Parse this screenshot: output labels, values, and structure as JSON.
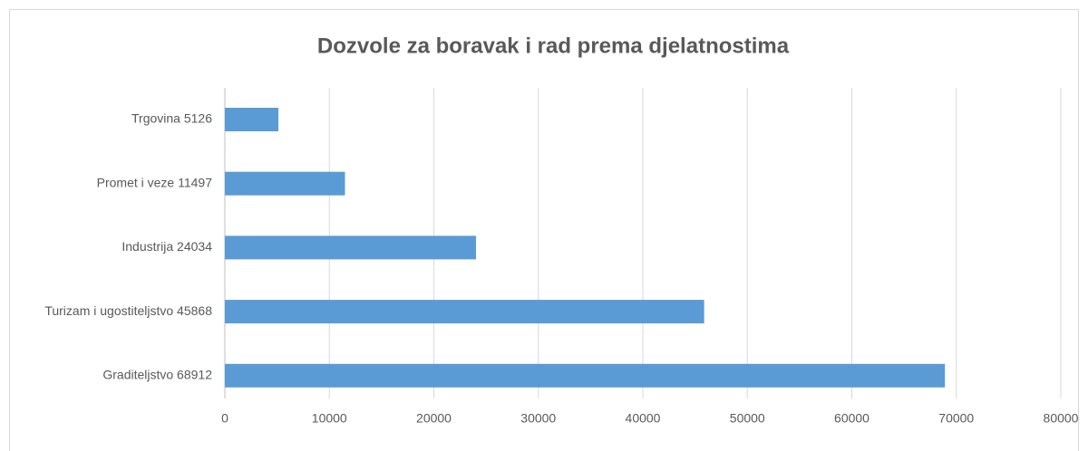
{
  "chart_data": {
    "type": "bar",
    "orientation": "horizontal",
    "title": "Dozvole za boravak i rad prema djelatnostima",
    "categories": [
      "Trgovina 5126",
      "Promet i veze 11497",
      "Industrija 24034",
      "Turizam i ugostiteljstvo 45868",
      "Graditeljstvo 68912"
    ],
    "values": [
      5126,
      11497,
      24034,
      45868,
      68912
    ],
    "color": "#5b9bd5",
    "xlim": [
      0,
      80000
    ],
    "xticks": [
      0,
      10000,
      20000,
      30000,
      40000,
      50000,
      60000,
      70000,
      80000
    ],
    "grid": true
  }
}
